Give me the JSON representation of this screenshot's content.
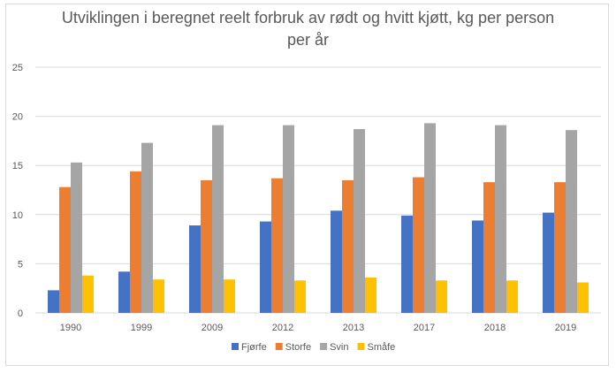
{
  "chart_data": {
    "type": "bar",
    "title_line1": "Utviklingen i beregnet reelt forbruk av rødt og hvitt kjøtt, kg per person",
    "title_line2": "per år",
    "categories": [
      "1990",
      "1999",
      "2009",
      "2012",
      "2013",
      "2017",
      "2018",
      "2019"
    ],
    "series": [
      {
        "name": "Fjørfe",
        "color": "#4472C4",
        "values": [
          2.3,
          4.2,
          8.9,
          9.3,
          10.4,
          9.9,
          9.4,
          10.2
        ]
      },
      {
        "name": "Storfe",
        "color": "#ED7D31",
        "values": [
          12.8,
          14.4,
          13.5,
          13.7,
          13.5,
          13.8,
          13.3,
          13.3
        ]
      },
      {
        "name": "Svin",
        "color": "#A5A5A5",
        "values": [
          15.3,
          17.3,
          19.1,
          19.1,
          18.7,
          19.3,
          19.1,
          18.6
        ]
      },
      {
        "name": "Småfe",
        "color": "#FFC000",
        "values": [
          3.8,
          3.4,
          3.4,
          3.3,
          3.6,
          3.3,
          3.3,
          3.1
        ]
      }
    ],
    "yticks": [
      "0",
      "5",
      "10",
      "15",
      "20",
      "25"
    ],
    "ylim": [
      0,
      25
    ],
    "grid": true,
    "legend": "bottom"
  }
}
